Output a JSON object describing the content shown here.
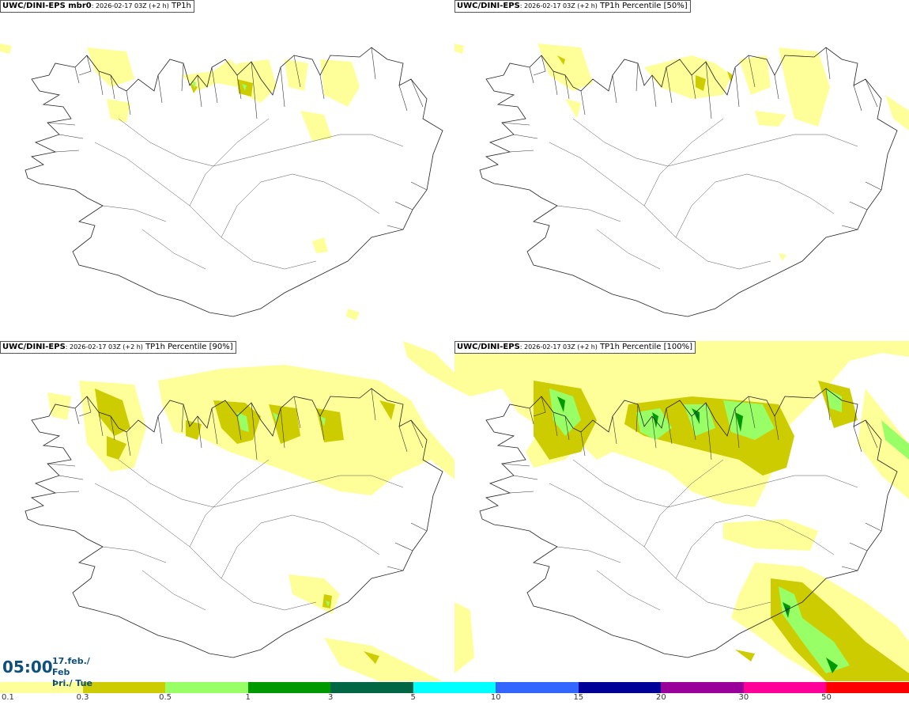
{
  "panels": [
    {
      "title_bold": "UWC/DINI-EPS mbr0",
      "title_meta": ": 2026-02-17 03Z (+2 h)",
      "title_var": " TP1h"
    },
    {
      "title_bold": "UWC/DINI-EPS",
      "title_meta": ": 2026-02-17 03Z (+2 h)",
      "title_var": " TP1h Percentile [50%]"
    },
    {
      "title_bold": "UWC/DINI-EPS",
      "title_meta": ": 2026-02-17 03Z (+2 h)",
      "title_var": " TP1h Percentile [90%]"
    },
    {
      "title_bold": "UWC/DINI-EPS",
      "title_meta": ": 2026-02-17 03Z (+2 h)",
      "title_var": " TP1h Percentile [100%]"
    }
  ],
  "time": {
    "clock": "05:00",
    "date_line": "17.feb./ Feb",
    "day_line": "Þri./ Tue"
  },
  "colorbar": {
    "colors": [
      "#ffff99",
      "#cccc00",
      "#99ff66",
      "#009900",
      "#006644",
      "#00ffff",
      "#3366ff",
      "#000099",
      "#990099",
      "#ff0099",
      "#ff0000"
    ],
    "labels": [
      "0.1",
      "0.3",
      "0.5",
      "1",
      "3",
      "5",
      "10",
      "15",
      "20",
      "30",
      "50"
    ]
  }
}
